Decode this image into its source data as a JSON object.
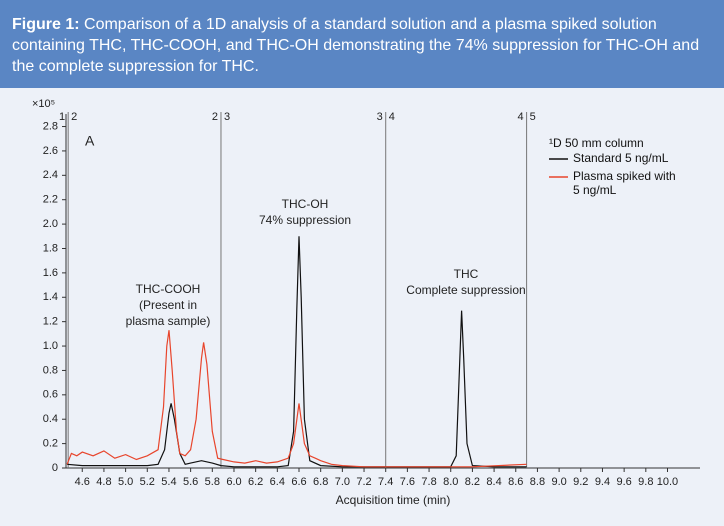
{
  "caption": {
    "label": "Figure 1:",
    "text": "Comparison of a 1D analysis of a standard solution and a plasma spiked solution containing THC, THC-COOH, and THC-OH demonstrating the 74% suppression for THC-OH and the complete suppression for THC."
  },
  "chart_data": {
    "type": "line",
    "y_unit": "×10⁵",
    "x_label": "Acquisition time (min)",
    "xlim": [
      4.45,
      10.3
    ],
    "ylim": [
      0,
      2.87
    ],
    "xticks": [
      4.6,
      4.8,
      {
        "value": 5,
        "label": "5.0"
      },
      5.2,
      5.4,
      5.6,
      5.8,
      {
        "value": 6,
        "label": "6.0"
      },
      6.2,
      6.4,
      6.6,
      6.8,
      {
        "value": 7,
        "label": "7.0"
      },
      7.2,
      7.4,
      7.6,
      7.8,
      {
        "value": 8,
        "label": "8.0"
      },
      8.2,
      8.4,
      8.6,
      8.8,
      {
        "value": 9,
        "label": "9.0"
      },
      9.2,
      9.4,
      9.6,
      9.8,
      {
        "value": 10,
        "label": "10.0"
      }
    ],
    "yticks": [
      0,
      0.2,
      0.4,
      0.6,
      0.8,
      {
        "value": 1,
        "label": "1.0"
      },
      1.2,
      1.4,
      1.6,
      1.8,
      {
        "value": 2,
        "label": "2.0"
      },
      2.2,
      2.4,
      2.6,
      2.8
    ],
    "segment_lines": [
      4.47,
      5.88,
      7.4,
      8.7
    ],
    "segment_labels": [
      [
        "1",
        "2"
      ],
      [
        "2",
        "3"
      ],
      [
        "3",
        "4"
      ],
      [
        "4",
        "5"
      ]
    ],
    "panel_label": "A",
    "annotations": [
      [
        "THC-COOH",
        "(Present in",
        "plasma sample)"
      ],
      [
        "THC-OH",
        "74% suppression"
      ],
      [
        "THC",
        "Complete suppression"
      ]
    ],
    "legend_title": "¹D 50 mm column",
    "series": [
      {
        "name": "Standard 5 ng/mL",
        "color": "#111111",
        "x": [
          4.46,
          4.6,
          4.8,
          5.0,
          5.2,
          5.3,
          5.36,
          5.4,
          5.42,
          5.45,
          5.5,
          5.55,
          5.6,
          5.7,
          5.8,
          5.88,
          6.0,
          6.2,
          6.4,
          6.5,
          6.55,
          6.58,
          6.6,
          6.62,
          6.65,
          6.7,
          6.8,
          7.0,
          7.2,
          7.4,
          7.6,
          7.8,
          8.0,
          8.05,
          8.08,
          8.1,
          8.12,
          8.15,
          8.2,
          8.4,
          8.7
        ],
        "values": [
          0.03,
          0.02,
          0.02,
          0.02,
          0.02,
          0.03,
          0.15,
          0.45,
          0.53,
          0.4,
          0.12,
          0.03,
          0.04,
          0.06,
          0.04,
          0.02,
          0.01,
          0.01,
          0.01,
          0.02,
          0.3,
          1.3,
          1.9,
          1.4,
          0.4,
          0.06,
          0.02,
          0.01,
          0.01,
          0.01,
          0.01,
          0.01,
          0.01,
          0.1,
          0.8,
          1.29,
          0.9,
          0.2,
          0.02,
          0.01,
          0.01
        ]
      },
      {
        "name": "Plasma spiked with 5 ng/mL",
        "color": "#e8452c",
        "x": [
          4.46,
          4.5,
          4.55,
          4.6,
          4.7,
          4.8,
          4.9,
          5.0,
          5.1,
          5.2,
          5.3,
          5.35,
          5.38,
          5.4,
          5.43,
          5.47,
          5.5,
          5.55,
          5.6,
          5.65,
          5.7,
          5.72,
          5.75,
          5.8,
          5.85,
          5.9,
          6.0,
          6.1,
          6.2,
          6.3,
          6.4,
          6.5,
          6.55,
          6.6,
          6.65,
          6.7,
          6.75,
          6.8,
          6.9,
          7.0,
          7.2,
          7.4,
          7.8,
          8.2,
          8.7
        ],
        "values": [
          0.03,
          0.12,
          0.1,
          0.13,
          0.1,
          0.14,
          0.08,
          0.11,
          0.07,
          0.1,
          0.15,
          0.5,
          1.0,
          1.13,
          0.8,
          0.3,
          0.12,
          0.1,
          0.15,
          0.4,
          0.9,
          1.03,
          0.85,
          0.3,
          0.08,
          0.07,
          0.05,
          0.04,
          0.06,
          0.04,
          0.05,
          0.08,
          0.2,
          0.53,
          0.2,
          0.1,
          0.08,
          0.06,
          0.03,
          0.02,
          0.01,
          0.01,
          0.01,
          0.01,
          0.03
        ]
      }
    ]
  }
}
